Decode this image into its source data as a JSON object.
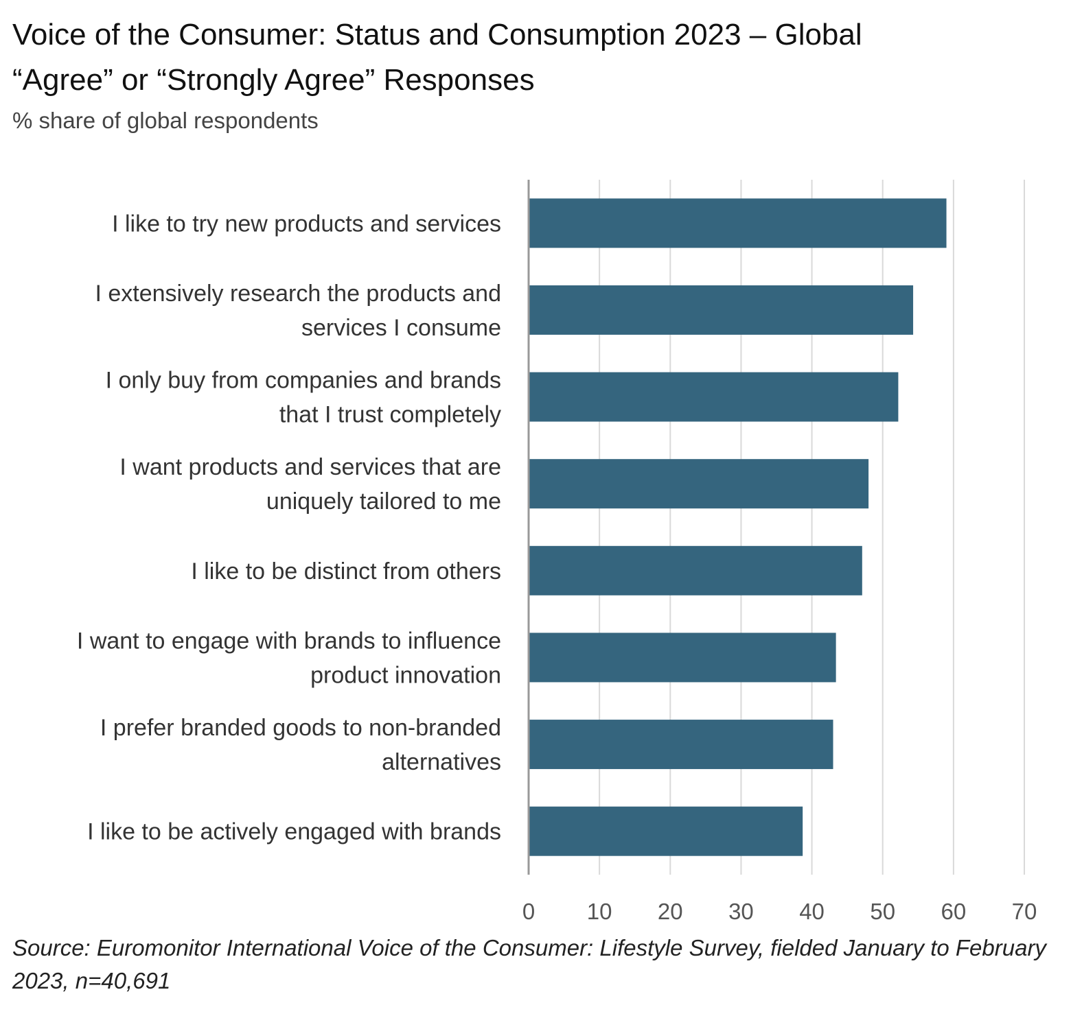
{
  "chart_data": {
    "type": "bar",
    "orientation": "horizontal",
    "title_lines": [
      "Voice of the Consumer: Status and Consumption 2023 – Global",
      "“Agree” or “Strongly Agree” Responses"
    ],
    "subtitle": "% share of global respondents",
    "categories": [
      [
        "I like to try new products and services"
      ],
      [
        "I extensively research the products and",
        "services I consume"
      ],
      [
        "I only buy from companies and brands",
        "that I trust completely"
      ],
      [
        "I want products and services that are",
        "uniquely tailored to me"
      ],
      [
        "I like to be distinct from others"
      ],
      [
        "I want to engage with brands to influence",
        "product innovation"
      ],
      [
        "I prefer branded goods to non-branded",
        "alternatives"
      ],
      [
        "I like to be actively engaged with brands"
      ]
    ],
    "values": [
      59,
      54.3,
      52.2,
      48,
      47.1,
      43.4,
      43,
      38.7
    ],
    "xlim": [
      0,
      70
    ],
    "xticks": [
      "0",
      "10",
      "20",
      "30",
      "40",
      "50",
      "60",
      "70"
    ],
    "grid": "vertical",
    "bar_color": "#35657e",
    "source": "Source: Euromonitor International Voice of the Consumer: Lifestyle Survey, fielded January to February 2023, n=40,691"
  }
}
